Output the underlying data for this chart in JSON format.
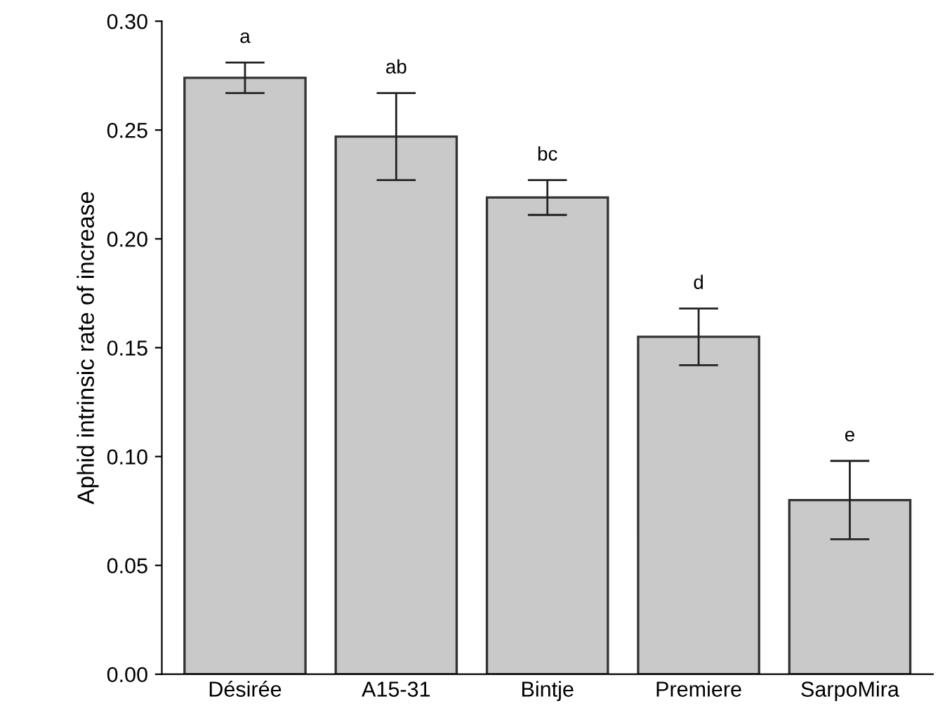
{
  "chart_data": {
    "type": "bar",
    "ylabel": "Aphid intrinsic rate of increase",
    "categories": [
      "Désirée",
      "A15-31",
      "Bintje",
      "Premiere",
      "SarpoMira"
    ],
    "values": [
      0.274,
      0.247,
      0.219,
      0.155,
      0.08
    ],
    "errors": [
      0.007,
      0.02,
      0.008,
      0.013,
      0.018
    ],
    "color": "#c9c9c9",
    "ylim": [
      0,
      0.3
    ],
    "yticks": [
      {
        "value": 0,
        "label": "0.00"
      },
      {
        "value": 0.05,
        "label": "0.05"
      },
      {
        "value": 0.1,
        "label": "0.10"
      },
      {
        "value": 0.15,
        "label": "0.15"
      },
      {
        "value": 0.2,
        "label": "0.20"
      },
      {
        "value": 0.25,
        "label": "0.25"
      },
      {
        "value": 0.3,
        "label": "0.30"
      }
    ],
    "grid": false,
    "annotations": [
      {
        "text": "a",
        "x": "Désirée",
        "y": 0.281
      },
      {
        "text": "ab",
        "x": "A15-31",
        "y": 0.267
      },
      {
        "text": "bc",
        "x": "Bintje",
        "y": 0.227
      },
      {
        "text": "d",
        "x": "Premiere",
        "y": 0.168
      },
      {
        "text": "e",
        "x": "SarpoMira",
        "y": 0.098
      }
    ]
  }
}
